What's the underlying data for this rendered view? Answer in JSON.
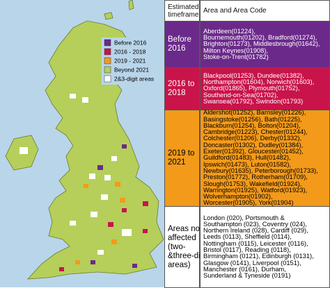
{
  "legend": {
    "items": [
      {
        "label": "Before 2016"
      },
      {
        "label": "2016 - 2018"
      },
      {
        "label": "2019 - 2021"
      },
      {
        "label": "Beyond 2021"
      },
      {
        "label": "2&3-digit areas"
      }
    ]
  },
  "table": {
    "header": [
      [
        "Estimated",
        "timeframe"
      ],
      [
        "Area and Area Code"
      ]
    ],
    "rows": [
      [
        [
          "Before",
          "2016"
        ],
        [
          "Aberdeen(01224),",
          "Bournemouth(01202), Bradford(01274),",
          "Brighton(01273), Middlesbrough(01642),",
          "Milton Keynes(01908),",
          "Stoke-on-Trent(01782)"
        ]
      ],
      [
        [
          "2016 to",
          "2018"
        ],
        [
          "Blackpool(01253), Dundee(01382),",
          "Northampton(01604), Norwich(01603),",
          "Oxford(01865), Plymouth(01752),",
          "Southend-on-Sea(01702),",
          "Swansea(01792), Swindon(01793)"
        ]
      ],
      [
        [
          "2019 to",
          "2021"
        ],
        [
          "Aldershot(01252), Barnsley(01226),",
          "Basingstoke(01256), Bath(01225),",
          "Blackburn(01254), Bolton(01204),",
          "Cambridge(01223), Chester(01244),",
          "Colchester(01206), Derby(01332),",
          "Doncaster(01302), Dudley(01384),",
          "Exeter(01392), Gloucester(01452),",
          "Guildford(01483), Hull(01482),",
          "Ipswich(01473), Luton(01582),",
          "Newbury(01635), Peterborough(01733),",
          "Preston(01772), Rotherham(01709),",
          "Slough(01753), Wakefield(01924),",
          "Warrington(01925), Watford(01923),",
          "Wolverhampton(01902),",
          "Worcester(01905), York(01904)"
        ]
      ],
      [
        [
          "Areas not",
          "affected",
          "(two-",
          "&three-digit",
          "areas)"
        ],
        [
          "London (020), Portsmouth &",
          "Southampton (023), Coventry (024),",
          "Northern Ireland (028), Cardiff (029),",
          "Leeds (0113), Sheffield (0114),",
          "Nottingham (0115), Leicester (0116),",
          "Bristol (0117), Reading (0118),",
          "Birmingham (0121), Edinburgh (0131),",
          "Glasgow (0141), Liverpool (0151),",
          "Manchester (0161), Durham,",
          "Sunderland & Tyneside (0191)"
        ]
      ]
    ]
  }
}
